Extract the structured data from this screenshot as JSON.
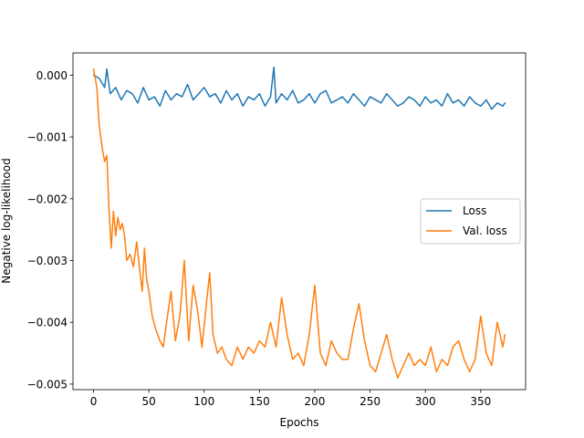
{
  "chart_data": {
    "type": "line",
    "title": "",
    "xlabel": "Epochs",
    "ylabel": "Negative log-likelihood",
    "xlim": [
      -18.6,
      390.6
    ],
    "ylim": [
      -0.00509,
      0.00036
    ],
    "xticks": [
      0,
      50,
      100,
      150,
      200,
      250,
      300,
      350
    ],
    "xtick_labels": [
      "0",
      "50",
      "100",
      "150",
      "200",
      "250",
      "300",
      "350"
    ],
    "yticks": [
      0.0,
      -0.001,
      -0.002,
      -0.003,
      -0.004,
      -0.005
    ],
    "ytick_labels": [
      "0.000",
      "−0.001",
      "−0.002",
      "−0.003",
      "−0.004",
      "−0.005"
    ],
    "legend_position": "center-right",
    "grid": false,
    "series": [
      {
        "name": "Loss",
        "color": "#1f77b4",
        "x": [
          0,
          5,
          10,
          12,
          15,
          20,
          25,
          30,
          35,
          40,
          45,
          50,
          55,
          60,
          65,
          70,
          75,
          80,
          85,
          90,
          95,
          100,
          105,
          110,
          115,
          120,
          125,
          130,
          135,
          140,
          145,
          150,
          155,
          160,
          163,
          165,
          170,
          175,
          180,
          185,
          190,
          195,
          200,
          205,
          210,
          215,
          220,
          225,
          230,
          235,
          240,
          245,
          250,
          255,
          260,
          265,
          270,
          275,
          280,
          285,
          290,
          295,
          300,
          305,
          310,
          315,
          320,
          325,
          330,
          335,
          340,
          345,
          350,
          355,
          360,
          365,
          370,
          372
        ],
        "values": [
          0.0,
          -5e-05,
          -0.0002,
          0.0001,
          -0.0003,
          -0.0002,
          -0.0004,
          -0.00025,
          -0.0003,
          -0.00045,
          -0.0002,
          -0.0004,
          -0.00035,
          -0.0005,
          -0.00025,
          -0.0004,
          -0.0003,
          -0.00035,
          -0.00015,
          -0.0004,
          -0.0003,
          -0.0002,
          -0.00035,
          -0.0003,
          -0.00045,
          -0.00025,
          -0.0004,
          -0.0003,
          -0.0005,
          -0.00035,
          -0.0004,
          -0.0003,
          -0.0005,
          -0.00035,
          0.00013,
          -0.00045,
          -0.0003,
          -0.0004,
          -0.00025,
          -0.00045,
          -0.0004,
          -0.0003,
          -0.00045,
          -0.0003,
          -0.00025,
          -0.00045,
          -0.0004,
          -0.00035,
          -0.00045,
          -0.0003,
          -0.0004,
          -0.0005,
          -0.00035,
          -0.0004,
          -0.00045,
          -0.0003,
          -0.0004,
          -0.0005,
          -0.00045,
          -0.00035,
          -0.0004,
          -0.0005,
          -0.00035,
          -0.00045,
          -0.0004,
          -0.0005,
          -0.0003,
          -0.00045,
          -0.0004,
          -0.0005,
          -0.00035,
          -0.00045,
          -0.0005,
          -0.0004,
          -0.00055,
          -0.00045,
          -0.0005,
          -0.00045
        ]
      },
      {
        "name": "Val. loss",
        "color": "#ff7f0e",
        "x": [
          0,
          3,
          5,
          8,
          10,
          12,
          14,
          16,
          18,
          20,
          22,
          24,
          26,
          28,
          30,
          33,
          36,
          39,
          42,
          44,
          46,
          48,
          50,
          53,
          56,
          60,
          63,
          66,
          70,
          74,
          78,
          82,
          86,
          90,
          94,
          98,
          102,
          105,
          108,
          112,
          116,
          120,
          125,
          130,
          135,
          140,
          145,
          150,
          155,
          160,
          165,
          170,
          175,
          180,
          185,
          190,
          195,
          200,
          205,
          210,
          215,
          220,
          225,
          230,
          235,
          240,
          245,
          250,
          255,
          260,
          265,
          270,
          275,
          280,
          285,
          290,
          295,
          300,
          305,
          310,
          315,
          320,
          325,
          330,
          335,
          340,
          345,
          350,
          355,
          360,
          365,
          370,
          372
        ],
        "values": [
          0.0001,
          -0.0002,
          -0.0008,
          -0.0012,
          -0.0014,
          -0.0013,
          -0.0022,
          -0.0028,
          -0.0022,
          -0.0026,
          -0.0023,
          -0.0025,
          -0.0024,
          -0.0026,
          -0.003,
          -0.0029,
          -0.0031,
          -0.0027,
          -0.0032,
          -0.0035,
          -0.0028,
          -0.0033,
          -0.0035,
          -0.0039,
          -0.0041,
          -0.0043,
          -0.0044,
          -0.004,
          -0.0035,
          -0.0043,
          -0.0039,
          -0.003,
          -0.0043,
          -0.0034,
          -0.0038,
          -0.0044,
          -0.0037,
          -0.0032,
          -0.0042,
          -0.0045,
          -0.0044,
          -0.0046,
          -0.0047,
          -0.0044,
          -0.0046,
          -0.0044,
          -0.0045,
          -0.0043,
          -0.0044,
          -0.004,
          -0.0044,
          -0.0036,
          -0.0042,
          -0.0046,
          -0.0045,
          -0.0047,
          -0.0042,
          -0.0034,
          -0.0045,
          -0.0047,
          -0.0043,
          -0.0045,
          -0.0046,
          -0.0046,
          -0.0041,
          -0.0037,
          -0.0043,
          -0.0047,
          -0.0048,
          -0.0045,
          -0.0042,
          -0.0046,
          -0.0049,
          -0.0047,
          -0.0045,
          -0.0047,
          -0.0046,
          -0.0047,
          -0.0044,
          -0.0048,
          -0.0046,
          -0.0047,
          -0.0044,
          -0.0043,
          -0.0046,
          -0.0048,
          -0.0046,
          -0.0039,
          -0.0045,
          -0.0047,
          -0.004,
          -0.0044,
          -0.0042
        ]
      }
    ]
  }
}
